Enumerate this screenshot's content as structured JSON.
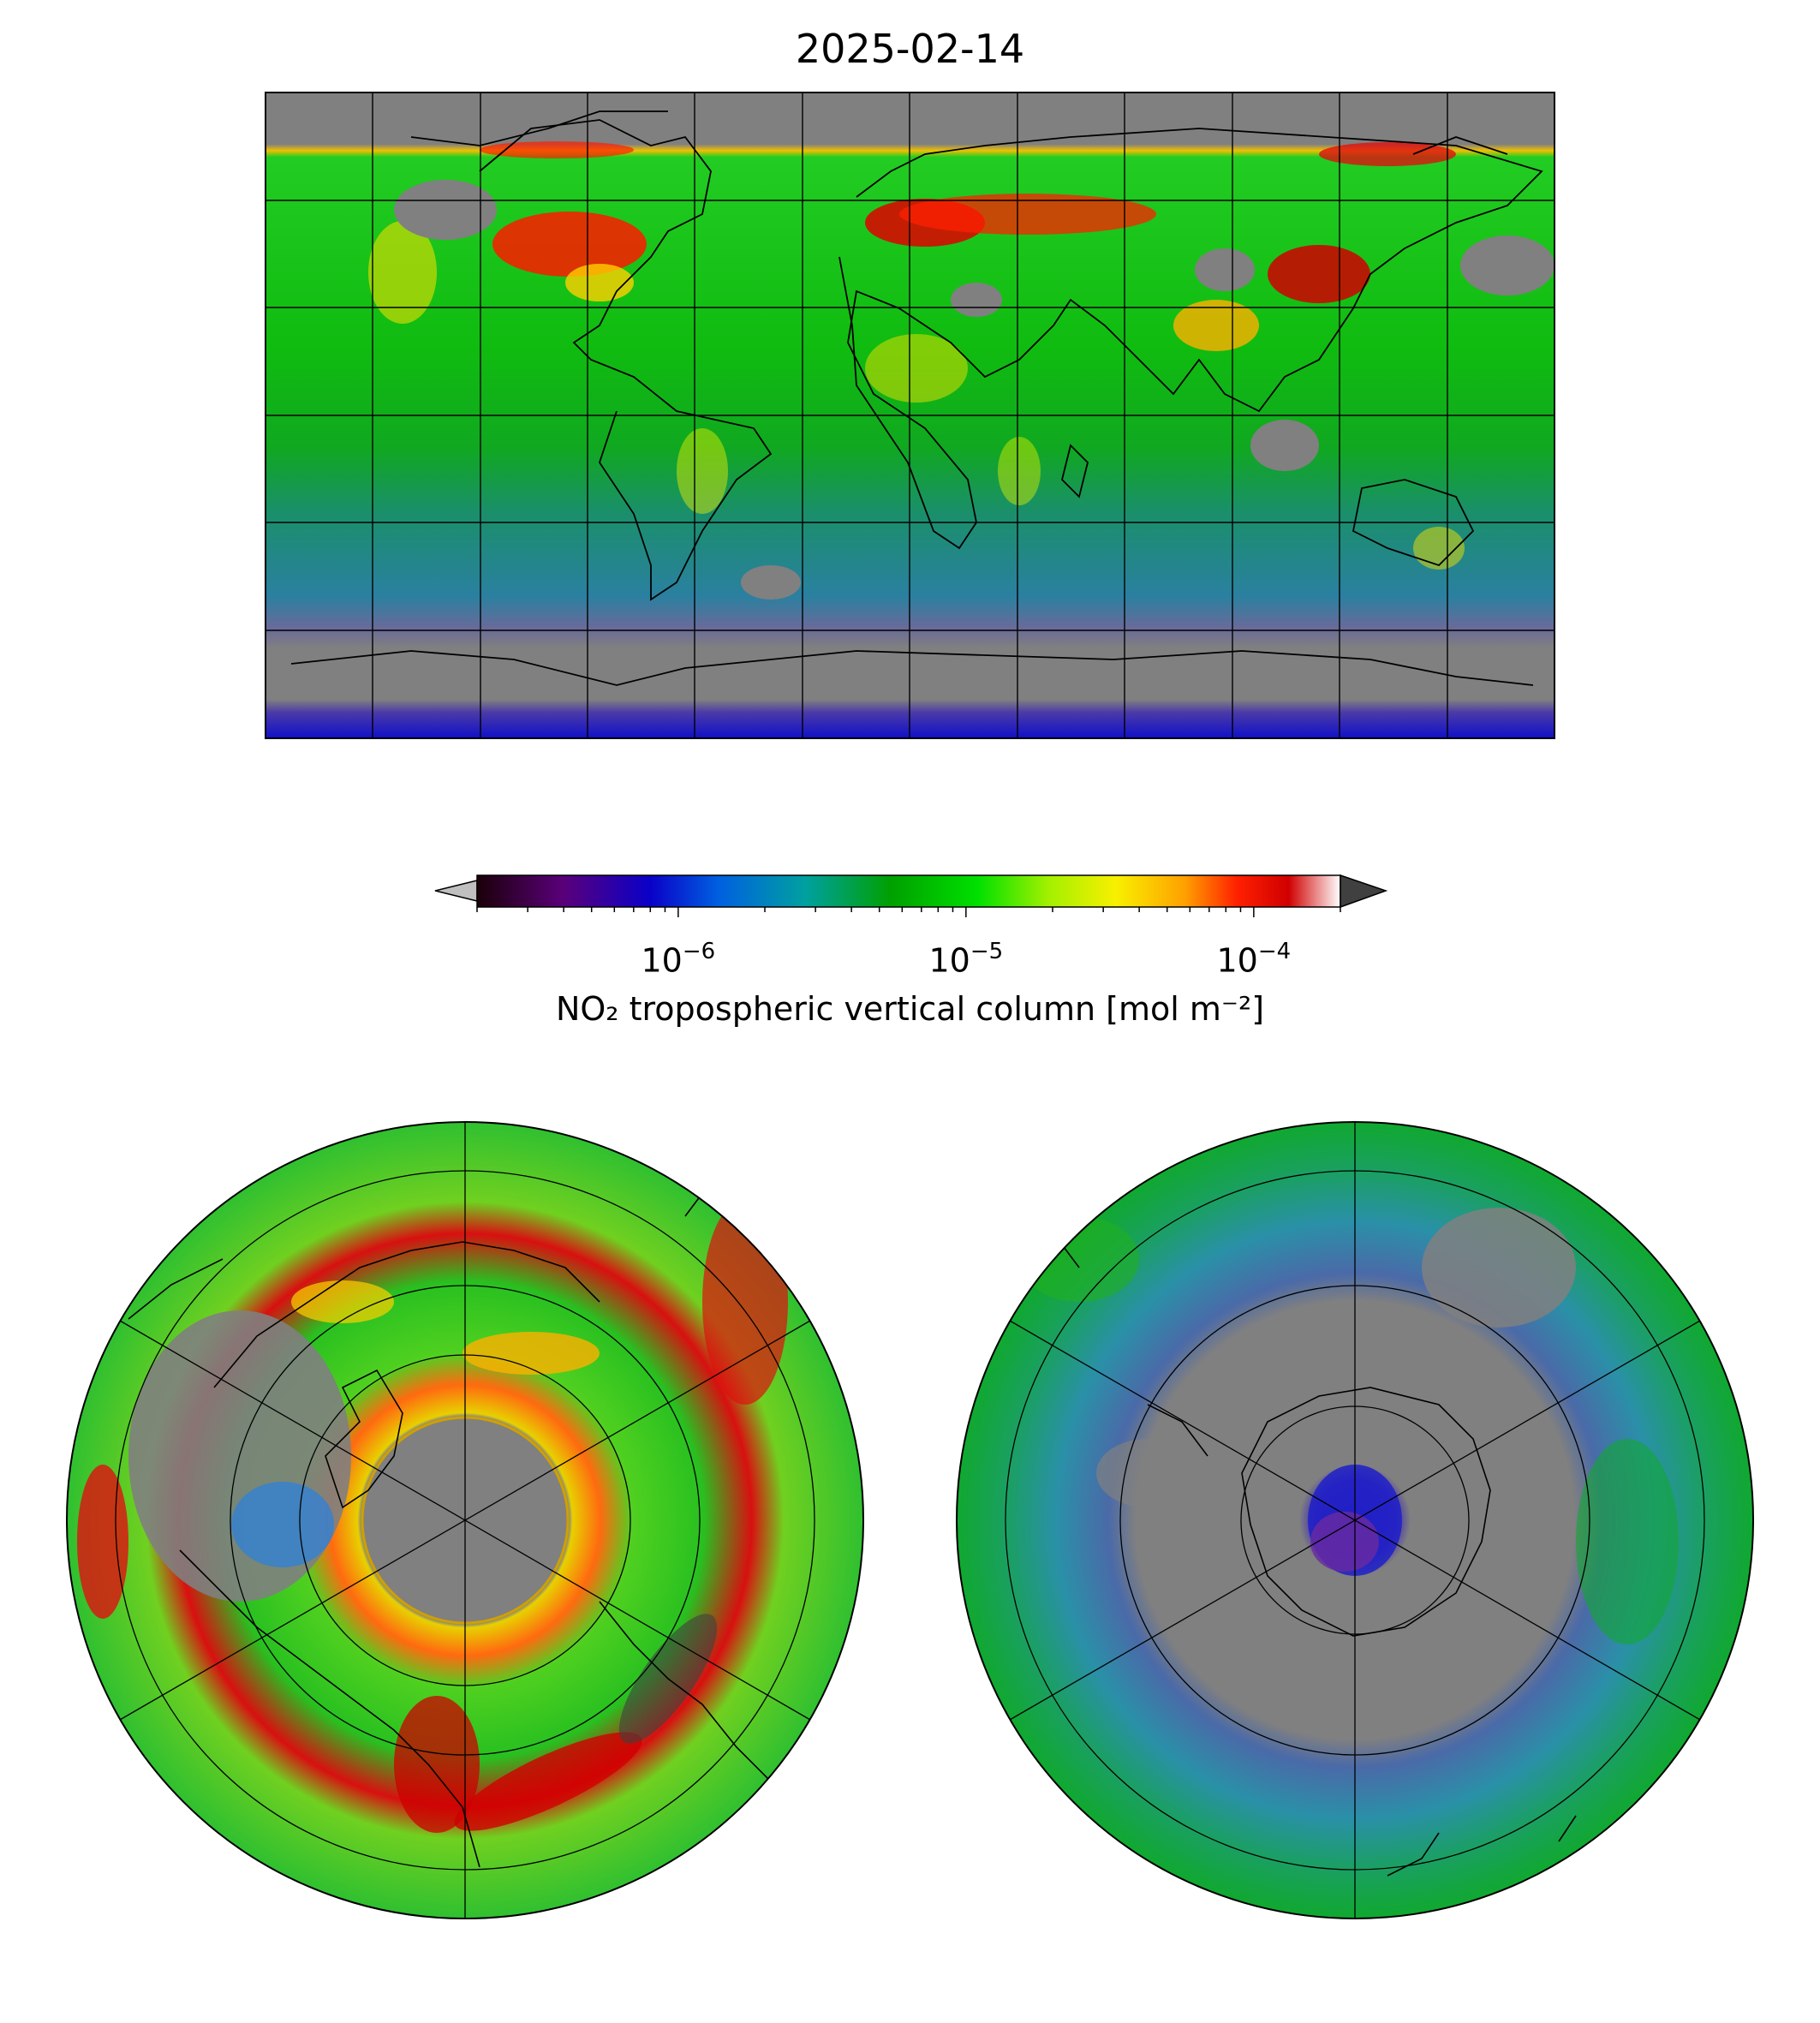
{
  "title": "2025-02-14",
  "colorbar": {
    "label": "NO₂ tropospheric vertical column [mol m⁻²]",
    "scale": "log",
    "range": [
      2e-07,
      0.0002
    ],
    "ticks": [
      {
        "base": "10",
        "exp": "−6",
        "value": 1e-06
      },
      {
        "base": "10",
        "exp": "−5",
        "value": 1e-05
      },
      {
        "base": "10",
        "exp": "−4",
        "value": 0.0001
      }
    ],
    "extend": "both",
    "colormap_stops": [
      "#1a0008",
      "#5a007a",
      "#0a00c8",
      "#0060e0",
      "#00a0a0",
      "#00a000",
      "#00e000",
      "#a0f000",
      "#f8f000",
      "#ffa000",
      "#ff2000",
      "#d00000",
      "#ffffff"
    ],
    "under_color": "#c0c0c0",
    "over_color": "#404040",
    "nodata_color": "#808080"
  },
  "maps": {
    "global": {
      "projection": "PlateCarree",
      "gridlines": true
    },
    "north_polar": {
      "projection": "NorthPolarStereo",
      "gridlines": true
    },
    "south_polar": {
      "projection": "SouthPolarStereo",
      "gridlines": true
    }
  }
}
